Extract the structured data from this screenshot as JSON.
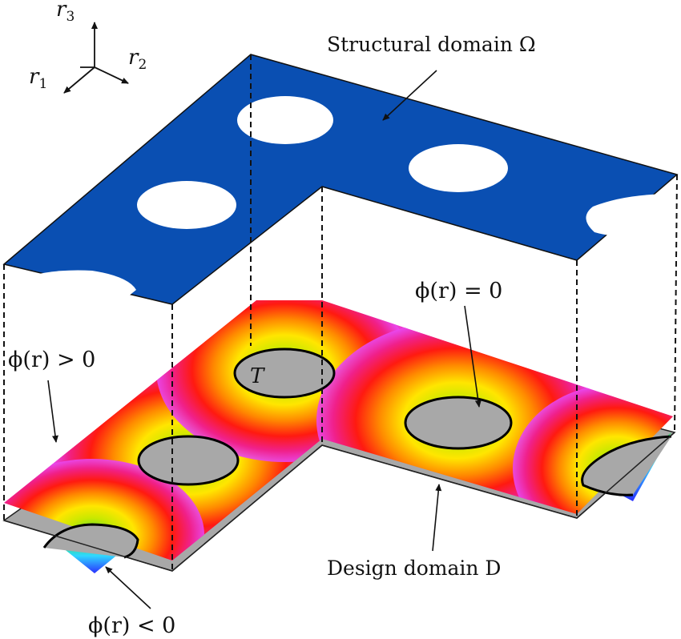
{
  "axes": {
    "r1": "r",
    "r1_sub": "1",
    "r2": "r",
    "r2_sub": "2",
    "r3": "r",
    "r3_sub": "3"
  },
  "labels": {
    "structural_domain": "Structural domain Ω",
    "design_domain": "Design domain D",
    "phi_zero": "ϕ(r) = 0",
    "phi_positive": "ϕ(r) > 0",
    "phi_negative": "ϕ(r) < 0",
    "boundary": "T"
  },
  "colors": {
    "structure": "#0a4fb2",
    "design_domain": "#a8a8a8",
    "hole": "#ffffff",
    "phi_magenta": "#e83ae8",
    "phi_red": "#ff1010",
    "phi_yellow": "#f4ee00",
    "phi_green": "#2ee04a",
    "phi_cyan": "#30d8ff",
    "phi_blue": "#2a3cff"
  }
}
